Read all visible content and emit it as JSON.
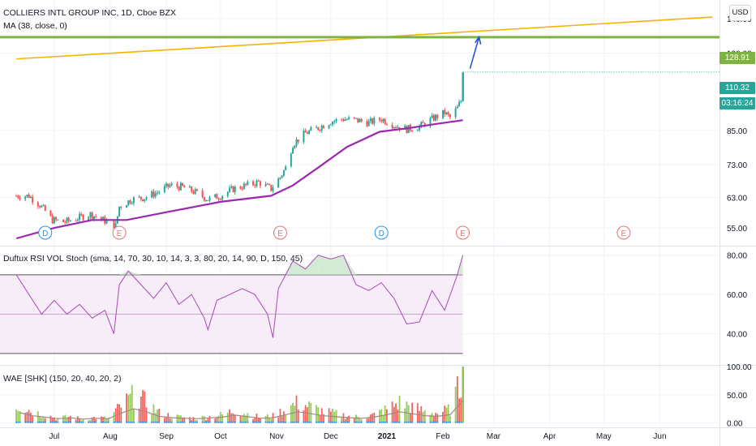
{
  "header": {
    "symbol": "COLLIERS INTL GROUP INC, 1D, Cboe BZX",
    "indicator": "MA (38, close, 0)"
  },
  "currency_button": "USD",
  "badges": {
    "target": {
      "text": "128.91",
      "color": "#7cb342"
    },
    "last": {
      "text": "110.32",
      "color": "#26a69a"
    },
    "countdown": {
      "text": "03:16:24",
      "color": "#26a69a"
    }
  },
  "panes": {
    "rsi_label": "Duftux RSI VOL Stoch (sma, 14, 70, 30, 10, 14, 3, 3, 80, 20, 14, 90, D, 150, 45)",
    "wae_label": "WAE [SHK] (150, 20, 40, 20, 2)"
  },
  "colors": {
    "up": "#26a69a",
    "down": "#ef5350",
    "ma": "#9c27b0",
    "trendline": "#f4b400",
    "target_line": "#7cb342",
    "arrow": "#1e4cd8",
    "dividend": "#2196f3",
    "earnings": "#e57373"
  },
  "chart_data": [
    {
      "type": "candlestick",
      "title": "COLLIERS INTL GROUP INC, 1D, Cboe BZX",
      "x_ticks": [
        "Jul",
        "Aug",
        "Sep",
        "Oct",
        "Nov",
        "Dec",
        "2021",
        "Feb",
        "Mar",
        "Apr",
        "May",
        "Jun"
      ],
      "y_ticks": [
        "55.00",
        "63.00",
        "73.00",
        "85.00",
        "110.32",
        "120.00",
        "128.91",
        "140.00"
      ],
      "y_scale": "log",
      "ylim": [
        51,
        150
      ],
      "series_points": [
        [
          "2020-06-17",
          63.5
        ],
        [
          "2020-06-23",
          61.0
        ],
        [
          "2020-06-30",
          57.0
        ],
        [
          "2020-07-07",
          56.5
        ],
        [
          "2020-07-14",
          57.5
        ],
        [
          "2020-07-21",
          58.5
        ],
        [
          "2020-07-28",
          57.0
        ],
        [
          "2020-08-04",
          55.5
        ],
        [
          "2020-08-06",
          60.5
        ],
        [
          "2020-08-13",
          62.5
        ],
        [
          "2020-08-20",
          63.0
        ],
        [
          "2020-08-27",
          64.5
        ],
        [
          "2020-09-03",
          66.5
        ],
        [
          "2020-09-10",
          66.0
        ],
        [
          "2020-09-17",
          64.5
        ],
        [
          "2020-09-24",
          62.5
        ],
        [
          "2020-10-01",
          63.5
        ],
        [
          "2020-10-08",
          65.5
        ],
        [
          "2020-10-15",
          66.5
        ],
        [
          "2020-10-22",
          67.5
        ],
        [
          "2020-10-29",
          65.5
        ],
        [
          "2020-11-03",
          69.0
        ],
        [
          "2020-11-06",
          72.0
        ],
        [
          "2020-11-10",
          80.0
        ],
        [
          "2020-11-17",
          84.0
        ],
        [
          "2020-11-24",
          86.0
        ],
        [
          "2020-12-01",
          88.5
        ],
        [
          "2020-12-08",
          89.5
        ],
        [
          "2020-12-15",
          89.0
        ],
        [
          "2020-12-22",
          88.0
        ],
        [
          "2020-12-29",
          89.5
        ],
        [
          "2021-01-05",
          87.0
        ],
        [
          "2021-01-12",
          85.5
        ],
        [
          "2021-01-19",
          86.5
        ],
        [
          "2021-01-26",
          89.5
        ],
        [
          "2021-02-02",
          92.0
        ],
        [
          "2021-02-05",
          90.0
        ],
        [
          "2021-02-09",
          94.0
        ],
        [
          "2021-02-11",
          97.0
        ],
        [
          "2021-02-12",
          110.32
        ]
      ],
      "moving_average": {
        "name": "MA (38, close, 0)",
        "points": [
          [
            "2020-06-10",
            52.5
          ],
          [
            "2020-07-01",
            55.0
          ],
          [
            "2020-07-22",
            57.0
          ],
          [
            "2020-08-10",
            57.0
          ],
          [
            "2020-09-01",
            59.0
          ],
          [
            "2020-10-01",
            61.8
          ],
          [
            "2020-10-29",
            63.5
          ],
          [
            "2020-11-10",
            66.5
          ],
          [
            "2020-11-24",
            72.0
          ],
          [
            "2020-12-10",
            79.0
          ],
          [
            "2020-12-28",
            84.5
          ],
          [
            "2021-01-14",
            86.0
          ],
          [
            "2021-01-28",
            87.5
          ],
          [
            "2021-02-12",
            89.0
          ]
        ]
      },
      "trendline": [
        [
          "2020-06-10",
          117.0
        ],
        [
          "2021-06-30",
          141.0
        ]
      ],
      "target_level": 128.91,
      "last_price": 110.32,
      "projection_arrow": [
        [
          "2021-02-16",
          112.0
        ],
        [
          "2021-02-21",
          129.0
        ]
      ],
      "events": [
        {
          "label": "D",
          "date": "2020-06-26"
        },
        {
          "label": "E",
          "date": "2020-08-06"
        },
        {
          "label": "E",
          "date": "2020-11-03"
        },
        {
          "label": "D",
          "date": "2020-12-29"
        },
        {
          "label": "E",
          "date": "2021-02-12"
        },
        {
          "label": "E",
          "date": "2021-05-12"
        }
      ]
    },
    {
      "type": "line",
      "title": "Duftux RSI VOL Stoch (sma, 14, 70, 30, 10, 14, 3, 3, 80, 20, 14, 90, D, 150, 45)",
      "y_ticks": [
        "40.00",
        "60.00",
        "80.00"
      ],
      "ylim": [
        25,
        84
      ],
      "levels": [
        70,
        50,
        30
      ],
      "points": [
        [
          "2020-06-10",
          70
        ],
        [
          "2020-06-17",
          60
        ],
        [
          "2020-06-24",
          50
        ],
        [
          "2020-07-01",
          57
        ],
        [
          "2020-07-08",
          50
        ],
        [
          "2020-07-15",
          55
        ],
        [
          "2020-07-22",
          48
        ],
        [
          "2020-07-29",
          52
        ],
        [
          "2020-08-03",
          40
        ],
        [
          "2020-08-06",
          65
        ],
        [
          "2020-08-11",
          72
        ],
        [
          "2020-08-18",
          65
        ],
        [
          "2020-08-25",
          58
        ],
        [
          "2020-09-01",
          66
        ],
        [
          "2020-09-08",
          55
        ],
        [
          "2020-09-15",
          60
        ],
        [
          "2020-09-22",
          48
        ],
        [
          "2020-09-24",
          42
        ],
        [
          "2020-09-29",
          57
        ],
        [
          "2020-10-06",
          60
        ],
        [
          "2020-10-13",
          63
        ],
        [
          "2020-10-20",
          60
        ],
        [
          "2020-10-27",
          50
        ],
        [
          "2020-10-30",
          38
        ],
        [
          "2020-11-02",
          63
        ],
        [
          "2020-11-06",
          70
        ],
        [
          "2020-11-10",
          77
        ],
        [
          "2020-11-17",
          73
        ],
        [
          "2020-11-24",
          80
        ],
        [
          "2020-12-01",
          78
        ],
        [
          "2020-12-08",
          80
        ],
        [
          "2020-12-15",
          65
        ],
        [
          "2020-12-22",
          62
        ],
        [
          "2020-12-29",
          66
        ],
        [
          "2021-01-05",
          58
        ],
        [
          "2021-01-12",
          45
        ],
        [
          "2021-01-19",
          46
        ],
        [
          "2021-01-26",
          62
        ],
        [
          "2021-02-02",
          52
        ],
        [
          "2021-02-09",
          70
        ],
        [
          "2021-02-12",
          80
        ]
      ]
    },
    {
      "type": "bar",
      "title": "WAE [SHK] (150, 20, 40, 20, 2)",
      "y_ticks": [
        "0.00",
        "50.00",
        "100.00"
      ],
      "ylim": [
        -5,
        100
      ],
      "points": [
        [
          "2020-06-12",
          40
        ],
        [
          "2020-06-19",
          25
        ],
        [
          "2020-06-26",
          18
        ],
        [
          "2020-07-03",
          10
        ],
        [
          "2020-07-10",
          14
        ],
        [
          "2020-07-17",
          8
        ],
        [
          "2020-07-24",
          12
        ],
        [
          "2020-07-31",
          10
        ],
        [
          "2020-08-07",
          38
        ],
        [
          "2020-08-14",
          60
        ],
        [
          "2020-08-21",
          45
        ],
        [
          "2020-08-28",
          22
        ],
        [
          "2020-09-04",
          15
        ],
        [
          "2020-09-11",
          12
        ],
        [
          "2020-09-18",
          10
        ],
        [
          "2020-09-25",
          14
        ],
        [
          "2020-10-02",
          18
        ],
        [
          "2020-10-09",
          28
        ],
        [
          "2020-10-16",
          20
        ],
        [
          "2020-10-23",
          12
        ],
        [
          "2020-10-30",
          15
        ],
        [
          "2020-11-06",
          30
        ],
        [
          "2020-11-13",
          45
        ],
        [
          "2020-11-20",
          35
        ],
        [
          "2020-11-27",
          25
        ],
        [
          "2020-12-04",
          20
        ],
        [
          "2020-12-11",
          15
        ],
        [
          "2020-12-18",
          12
        ],
        [
          "2020-12-25",
          18
        ],
        [
          "2021-01-01",
          30
        ],
        [
          "2021-01-08",
          45
        ],
        [
          "2021-01-15",
          35
        ],
        [
          "2021-01-22",
          25
        ],
        [
          "2021-01-29",
          22
        ],
        [
          "2021-02-05",
          30
        ],
        [
          "2021-02-12",
          100
        ]
      ]
    }
  ]
}
